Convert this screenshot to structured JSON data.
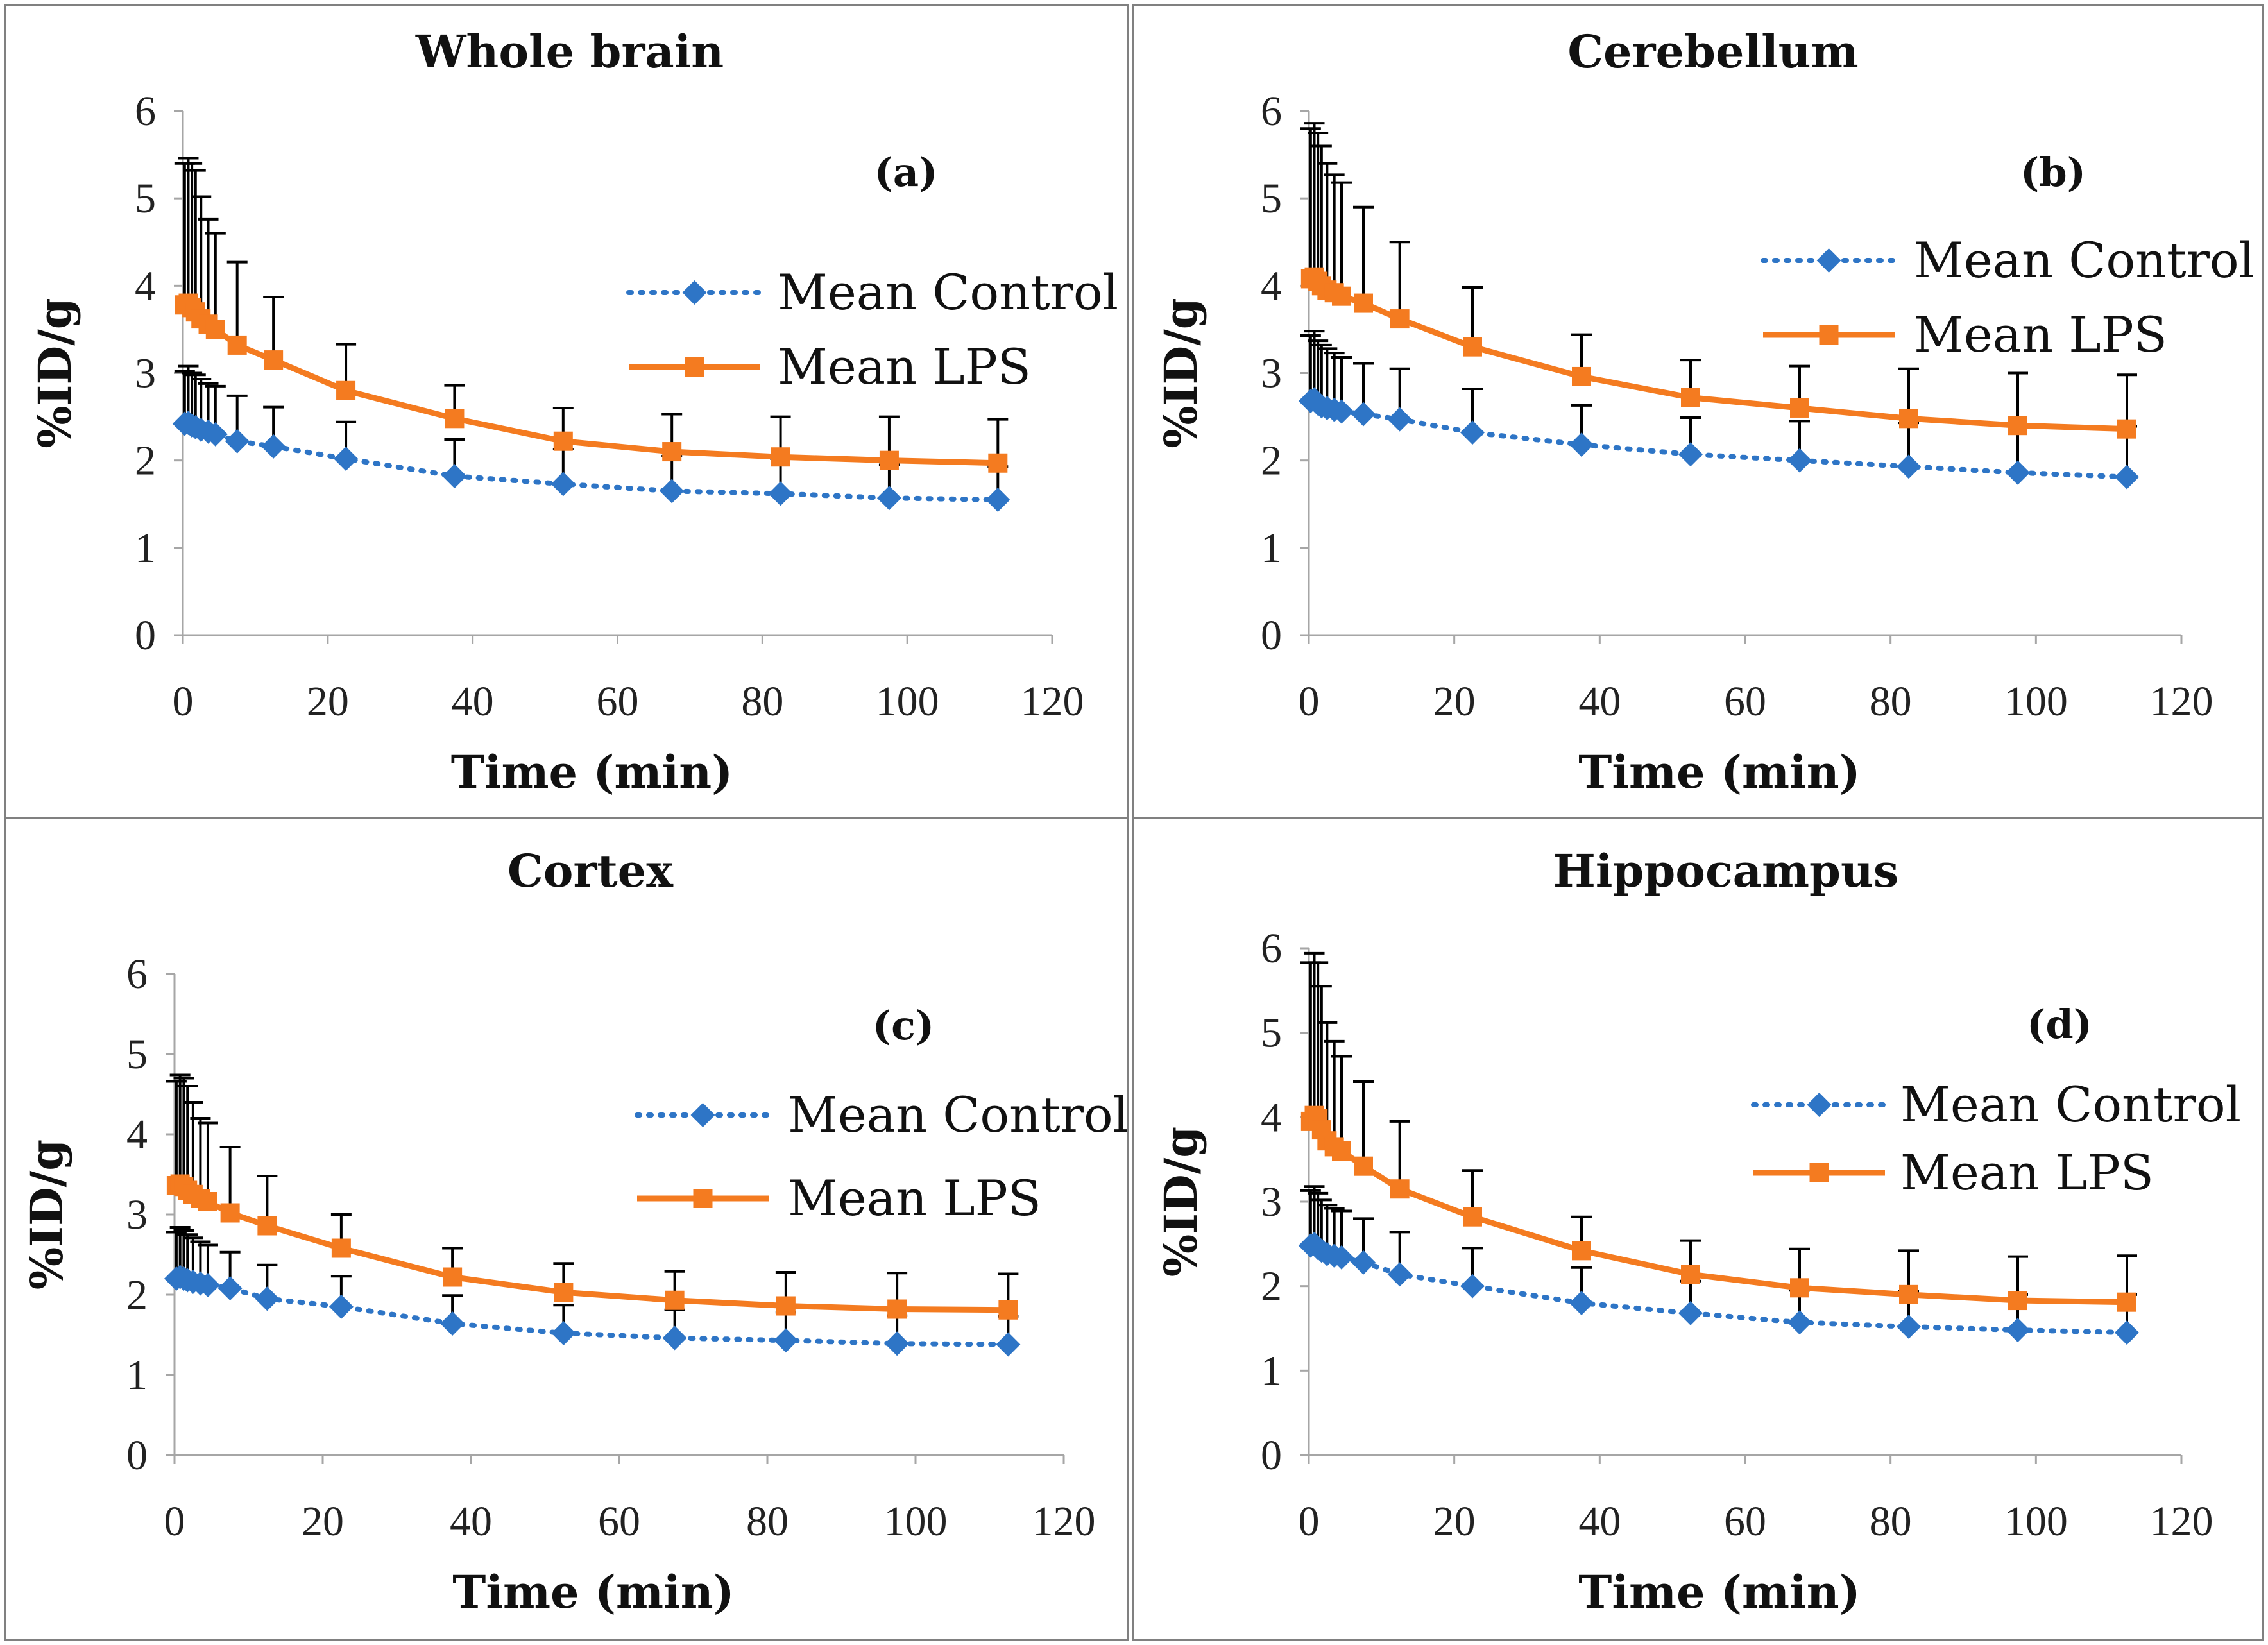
{
  "figure": {
    "colors": {
      "control": "#2E75C6",
      "lps": "#F47B20",
      "errorbar": "#000000",
      "axis": "#A6A6A6",
      "border": "#808080"
    }
  },
  "chart_data": [
    {
      "type": "line",
      "panel": "a",
      "title": "Whole brain",
      "letter": "(a)",
      "xlabel": "Time (min)",
      "ylabel": "%ID/g",
      "xlim": [
        0,
        120
      ],
      "ylim": [
        0,
        6
      ],
      "xticks": [
        0,
        20,
        40,
        60,
        80,
        100,
        120
      ],
      "yticks": [
        0,
        1,
        2,
        3,
        4,
        5,
        6
      ],
      "legend_position": "right",
      "series": [
        {
          "name": "Mean Control",
          "style": "dotted-diamond",
          "x": [
            0.25,
            0.75,
            1.25,
            1.75,
            2.5,
            3.5,
            4.5,
            7.5,
            12.5,
            22.5,
            37.5,
            52.5,
            67.5,
            82.5,
            97.5,
            112.5
          ],
          "y": [
            2.42,
            2.43,
            2.4,
            2.38,
            2.35,
            2.33,
            2.3,
            2.22,
            2.16,
            2.02,
            1.82,
            1.73,
            1.65,
            1.62,
            1.57,
            1.55
          ],
          "err": [
            0.6,
            0.65,
            0.6,
            0.6,
            0.58,
            0.55,
            0.55,
            0.52,
            0.45,
            0.42,
            0.42,
            0.4,
            0.4,
            0.4,
            0.38,
            0.38
          ]
        },
        {
          "name": "Mean LPS",
          "style": "solid-square",
          "x": [
            0.25,
            0.75,
            1.25,
            1.75,
            2.5,
            3.5,
            4.5,
            7.5,
            12.5,
            22.5,
            37.5,
            52.5,
            67.5,
            82.5,
            97.5,
            112.5
          ],
          "y": [
            3.78,
            3.8,
            3.75,
            3.7,
            3.62,
            3.56,
            3.5,
            3.32,
            3.15,
            2.8,
            2.48,
            2.22,
            2.1,
            2.04,
            2.0,
            1.97
          ],
          "err": [
            1.62,
            1.66,
            1.65,
            1.62,
            1.4,
            1.2,
            1.1,
            0.95,
            0.72,
            0.53,
            0.38,
            0.38,
            0.43,
            0.46,
            0.5,
            0.5
          ]
        }
      ]
    },
    {
      "type": "line",
      "panel": "b",
      "title": "Cerebellum",
      "letter": "(b)",
      "xlabel": "Time (min)",
      "ylabel": "%ID/g",
      "xlim": [
        0,
        120
      ],
      "ylim": [
        0,
        6
      ],
      "xticks": [
        0,
        20,
        40,
        60,
        80,
        100,
        120
      ],
      "yticks": [
        0,
        1,
        2,
        3,
        4,
        5,
        6
      ],
      "legend_position": "top-right",
      "series": [
        {
          "name": "Mean Control",
          "style": "dotted-diamond",
          "x": [
            0.25,
            0.75,
            1.25,
            1.75,
            2.5,
            3.5,
            4.5,
            7.5,
            12.5,
            22.5,
            37.5,
            52.5,
            67.5,
            82.5,
            97.5,
            112.5
          ],
          "y": [
            2.68,
            2.7,
            2.65,
            2.62,
            2.6,
            2.58,
            2.56,
            2.53,
            2.47,
            2.32,
            2.18,
            2.07,
            2.0,
            1.93,
            1.86,
            1.81
          ],
          "err": [
            0.75,
            0.78,
            0.72,
            0.7,
            0.68,
            0.65,
            0.62,
            0.58,
            0.58,
            0.5,
            0.45,
            0.42,
            0.45,
            0.5,
            0.55,
            0.58
          ]
        },
        {
          "name": "Mean LPS",
          "style": "solid-square",
          "x": [
            0.25,
            0.75,
            1.25,
            1.75,
            2.5,
            3.5,
            4.5,
            7.5,
            12.5,
            22.5,
            37.5,
            52.5,
            67.5,
            82.5,
            97.5,
            112.5
          ],
          "y": [
            4.08,
            4.1,
            4.05,
            4.0,
            3.95,
            3.92,
            3.88,
            3.8,
            3.62,
            3.3,
            2.96,
            2.72,
            2.6,
            2.48,
            2.4,
            2.36
          ],
          "err": [
            1.72,
            1.76,
            1.7,
            1.6,
            1.45,
            1.35,
            1.3,
            1.1,
            0.88,
            0.68,
            0.48,
            0.43,
            0.48,
            0.57,
            0.6,
            0.62
          ]
        }
      ]
    },
    {
      "type": "line",
      "panel": "c",
      "title": "Cortex",
      "letter": "(c)",
      "xlabel": "Time (min)",
      "ylabel": "%ID/g",
      "xlim": [
        0,
        120
      ],
      "ylim": [
        0,
        6
      ],
      "xticks": [
        0,
        20,
        40,
        60,
        80,
        100,
        120
      ],
      "yticks": [
        0,
        1,
        2,
        3,
        4,
        5,
        6
      ],
      "legend_position": "right",
      "series": [
        {
          "name": "Mean Control",
          "style": "dotted-diamond",
          "x": [
            0.25,
            0.75,
            1.25,
            1.75,
            2.5,
            3.5,
            4.5,
            7.5,
            12.5,
            22.5,
            37.5,
            52.5,
            67.5,
            82.5,
            97.5,
            112.5
          ],
          "y": [
            2.2,
            2.22,
            2.2,
            2.18,
            2.16,
            2.14,
            2.12,
            2.08,
            1.95,
            1.85,
            1.64,
            1.52,
            1.46,
            1.43,
            1.39,
            1.38
          ],
          "err": [
            0.58,
            0.62,
            0.6,
            0.57,
            0.55,
            0.52,
            0.5,
            0.45,
            0.42,
            0.38,
            0.35,
            0.35,
            0.35,
            0.35,
            0.35,
            0.35
          ]
        },
        {
          "name": "Mean LPS",
          "style": "solid-square",
          "x": [
            0.25,
            0.75,
            1.25,
            1.75,
            2.5,
            3.5,
            4.5,
            7.5,
            12.5,
            22.5,
            37.5,
            52.5,
            67.5,
            82.5,
            97.5,
            112.5
          ],
          "y": [
            3.36,
            3.38,
            3.35,
            3.3,
            3.25,
            3.2,
            3.16,
            3.02,
            2.86,
            2.58,
            2.22,
            2.03,
            1.93,
            1.86,
            1.82,
            1.81
          ],
          "err": [
            1.3,
            1.36,
            1.35,
            1.3,
            1.15,
            1.0,
            0.98,
            0.82,
            0.62,
            0.42,
            0.36,
            0.36,
            0.36,
            0.42,
            0.45,
            0.45
          ]
        }
      ]
    },
    {
      "type": "line",
      "panel": "d",
      "title": "Hippocampus",
      "letter": "(d)",
      "xlabel": "Time (min)",
      "ylabel": "%ID/g",
      "xlim": [
        0,
        120
      ],
      "ylim": [
        0,
        6
      ],
      "xticks": [
        0,
        20,
        40,
        60,
        80,
        100,
        120
      ],
      "yticks": [
        0,
        1,
        2,
        3,
        4,
        5,
        6
      ],
      "legend_position": "right",
      "series": [
        {
          "name": "Mean Control",
          "style": "dotted-diamond",
          "x": [
            0.25,
            0.75,
            1.25,
            1.75,
            2.5,
            3.5,
            4.5,
            7.5,
            12.5,
            22.5,
            37.5,
            52.5,
            67.5,
            82.5,
            97.5,
            112.5
          ],
          "y": [
            2.48,
            2.5,
            2.45,
            2.42,
            2.38,
            2.36,
            2.34,
            2.28,
            2.14,
            2.0,
            1.8,
            1.68,
            1.57,
            1.52,
            1.48,
            1.45
          ],
          "err": [
            0.65,
            0.68,
            0.65,
            0.6,
            0.58,
            0.56,
            0.55,
            0.52,
            0.5,
            0.45,
            0.42,
            0.38,
            0.38,
            0.42,
            0.42,
            0.45
          ]
        },
        {
          "name": "Mean LPS",
          "style": "solid-square",
          "x": [
            0.25,
            0.75,
            1.25,
            1.75,
            2.5,
            3.5,
            4.5,
            7.5,
            12.5,
            22.5,
            37.5,
            52.5,
            67.5,
            82.5,
            97.5,
            112.5
          ],
          "y": [
            3.95,
            4.02,
            3.98,
            3.85,
            3.72,
            3.65,
            3.6,
            3.42,
            3.15,
            2.82,
            2.42,
            2.14,
            1.98,
            1.9,
            1.83,
            1.81
          ],
          "err": [
            1.88,
            1.92,
            1.85,
            1.7,
            1.4,
            1.25,
            1.12,
            1.0,
            0.8,
            0.55,
            0.4,
            0.4,
            0.46,
            0.52,
            0.52,
            0.55
          ]
        }
      ]
    }
  ]
}
